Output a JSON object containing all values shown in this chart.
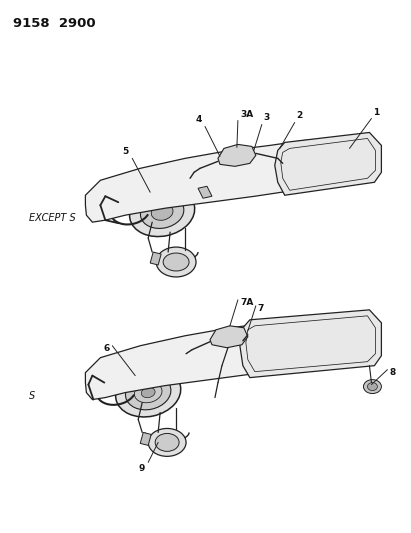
{
  "title": "9158  2900",
  "bg_color": "#ffffff",
  "line_color": "#222222",
  "text_color": "#111111",
  "label1": "EXCEPT S",
  "label2": "S",
  "title_fontsize": 9.5,
  "label_fontsize": 7.0,
  "callout_fontsize": 6.5
}
